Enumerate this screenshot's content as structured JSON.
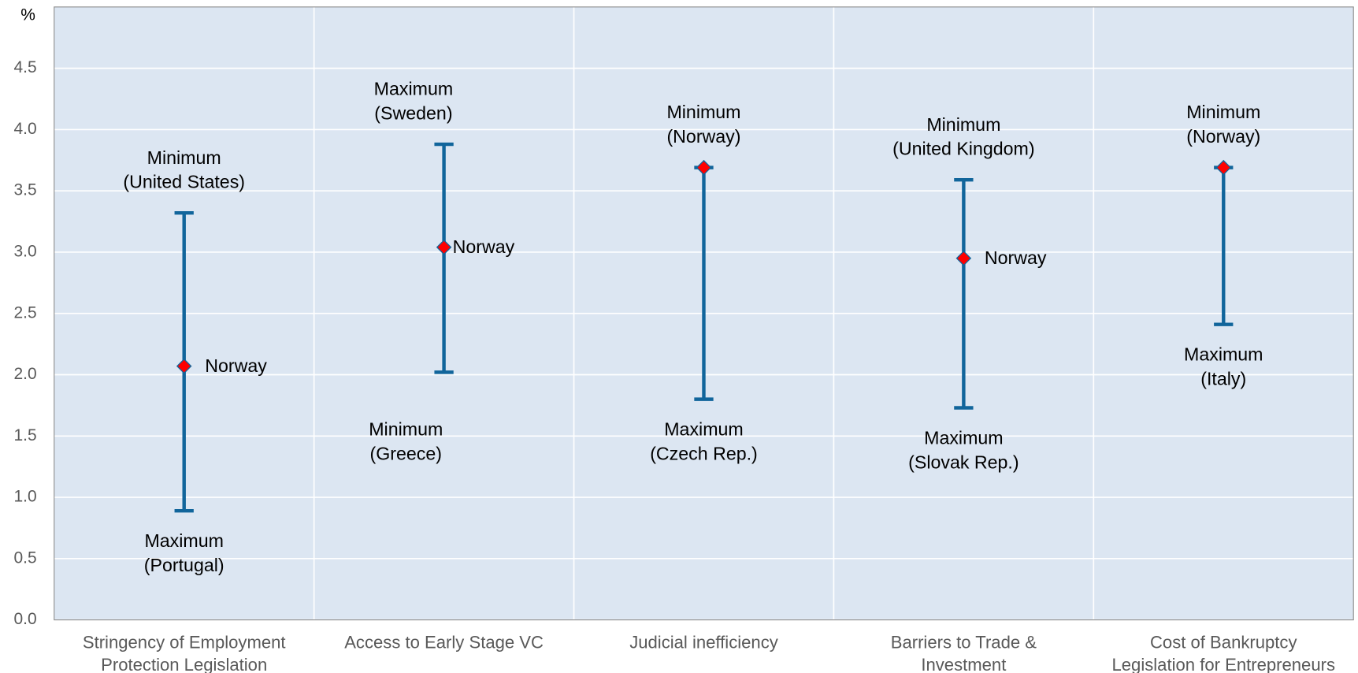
{
  "chart_data": {
    "type": "range",
    "y_label": "%",
    "categories": [
      [
        "Stringency of Employment",
        "Protection Legislation"
      ],
      [
        "Access to Early Stage VC"
      ],
      [
        "Judicial inefficiency"
      ],
      [
        "Barriers to Trade &",
        "Investment"
      ],
      [
        "Cost of Bankruptcy",
        "Legislation for Entrepreneurs"
      ]
    ],
    "range_color": "#11659b",
    "high": [
      3.32,
      3.88,
      3.69,
      3.59,
      3.69
    ],
    "low": [
      0.89,
      2.02,
      1.8,
      1.73,
      2.41
    ],
    "series": [
      {
        "name": "Norway",
        "color": "#ff0000",
        "values": [
          2.07,
          3.04,
          3.69,
          2.95,
          3.69
        ]
      }
    ],
    "point_labeled": [
      true,
      true,
      false,
      true,
      false
    ],
    "upper_labels": [
      [
        "Minimum",
        "(United States)"
      ],
      [
        "Maximum",
        "(Sweden)"
      ],
      [
        "Minimum",
        "(Norway)"
      ],
      [
        "Minimum",
        "(United Kingdom)"
      ],
      [
        "Minimum",
        "(Norway)"
      ]
    ],
    "lower_labels": [
      [
        "Maximum",
        "(Portugal)"
      ],
      [
        "Minimum",
        "(Greece)"
      ],
      [
        "Maximum",
        "(Czech Rep.)"
      ],
      [
        "Maximum",
        "(Slovak Rep.)"
      ],
      [
        "Maximum",
        "(Italy)"
      ]
    ],
    "ylim": [
      0,
      5
    ],
    "yticks": [
      {
        "value": 0,
        "label": "0.0"
      },
      {
        "value": 0.5,
        "label": "0.5"
      },
      {
        "value": 1,
        "label": "1.0"
      },
      {
        "value": 1.5,
        "label": "1.5"
      },
      {
        "value": 2,
        "label": "2.0"
      },
      {
        "value": 2.5,
        "label": "2.5"
      },
      {
        "value": 3,
        "label": "3.0"
      },
      {
        "value": 3.5,
        "label": "3.5"
      },
      {
        "value": 4,
        "label": "4.0"
      },
      {
        "value": 4.5,
        "label": "4.5"
      }
    ],
    "grid": true,
    "background": "#dce6f2"
  }
}
